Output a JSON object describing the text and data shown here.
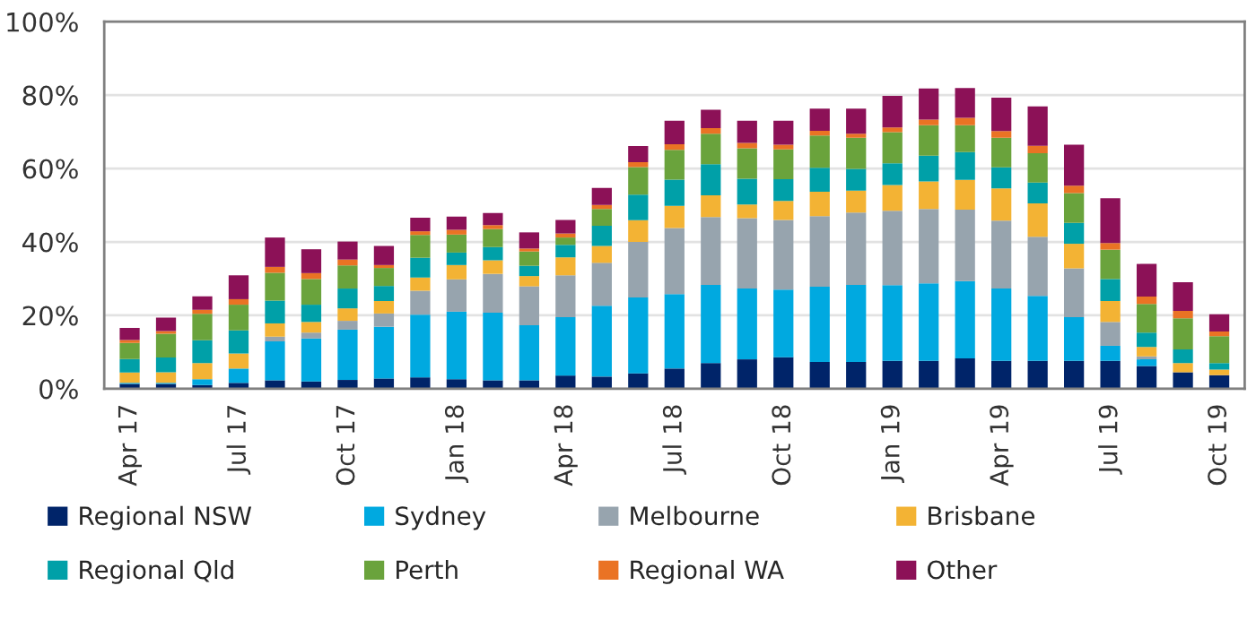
{
  "chart_data": {
    "type": "bar",
    "stacked": true,
    "categories": [
      "Apr 17",
      null,
      null,
      "Jul 17",
      null,
      null,
      "Oct 17",
      null,
      null,
      "Jan 18",
      null,
      null,
      "Apr 18",
      null,
      null,
      "Jul 18",
      null,
      null,
      "Oct 18",
      null,
      null,
      "Jan 19",
      null,
      null,
      "Apr 19",
      null,
      null,
      "Jul 19",
      null,
      null,
      "Oct 19"
    ],
    "series": [
      {
        "name": "Regional NSW",
        "color": "#002469",
        "values": [
          1.3,
          1.3,
          1.0,
          1.6,
          2.3,
          2.0,
          2.4,
          2.8,
          3.1,
          2.6,
          2.3,
          2.3,
          3.6,
          3.3,
          4.2,
          5.5,
          7.0,
          8.0,
          8.6,
          7.3,
          7.3,
          7.6,
          7.6,
          8.3,
          7.6,
          7.6,
          7.6,
          7.6,
          6.2,
          4.5,
          3.7
        ]
      },
      {
        "name": "Sydney",
        "color": "#00a9e0",
        "values": [
          0.3,
          0.3,
          1.6,
          3.9,
          10.6,
          11.7,
          13.7,
          14.1,
          17.1,
          18.4,
          18.4,
          15.0,
          15.9,
          19.3,
          20.7,
          20.3,
          21.3,
          19.3,
          18.4,
          20.5,
          21.0,
          20.6,
          21.1,
          21.0,
          19.7,
          17.7,
          11.9,
          4.1,
          1.8,
          0,
          0
        ]
      },
      {
        "name": "Melbourne",
        "color": "#97a4ae",
        "values": [
          0,
          0,
          0,
          0,
          1.3,
          1.6,
          2.4,
          3.6,
          6.5,
          8.8,
          10.6,
          10.6,
          11.4,
          11.7,
          15.1,
          18.0,
          18.5,
          19.2,
          19.0,
          19.2,
          19.7,
          20.3,
          20.3,
          19.5,
          18.5,
          16.1,
          13.3,
          6.5,
          0.8,
          0,
          0
        ]
      },
      {
        "name": "Brisbane",
        "color": "#f3b334",
        "values": [
          2.8,
          2.9,
          4.4,
          4.1,
          3.6,
          2.9,
          3.4,
          3.4,
          3.6,
          3.9,
          3.7,
          2.8,
          4.9,
          4.6,
          5.9,
          6.0,
          5.9,
          3.7,
          5.2,
          6.7,
          6.0,
          7.0,
          7.5,
          8.1,
          8.8,
          9.1,
          6.7,
          5.7,
          2.6,
          2.5,
          1.5
        ]
      },
      {
        "name": "Regional Qld",
        "color": "#00a0a8",
        "values": [
          3.7,
          4.0,
          6.2,
          6.3,
          6.2,
          4.7,
          5.4,
          4.1,
          5.4,
          3.4,
          3.6,
          2.8,
          3.4,
          5.5,
          7.0,
          7.2,
          8.5,
          7.0,
          5.9,
          6.5,
          5.9,
          5.9,
          7.0,
          7.6,
          5.7,
          5.7,
          5.7,
          6.0,
          3.9,
          3.7,
          1.8
        ]
      },
      {
        "name": "Perth",
        "color": "#6aa33c",
        "values": [
          4.4,
          6.5,
          7.2,
          7.0,
          7.6,
          7.0,
          6.3,
          4.9,
          6.2,
          4.9,
          4.9,
          3.9,
          2.0,
          4.6,
          7.5,
          8.1,
          8.3,
          8.3,
          8.1,
          8.8,
          8.5,
          8.5,
          8.3,
          7.3,
          8.1,
          8.0,
          8.1,
          8.0,
          7.8,
          8.5,
          7.3
        ]
      },
      {
        "name": "Regional WA",
        "color": "#ea7324",
        "values": [
          0.8,
          0.7,
          1.1,
          1.5,
          1.6,
          1.6,
          1.6,
          0.8,
          1.0,
          1.3,
          1.1,
          0.8,
          1.1,
          1.1,
          1.3,
          1.5,
          1.5,
          1.5,
          1.3,
          1.3,
          1.1,
          1.3,
          1.5,
          2.0,
          1.8,
          2.0,
          2.0,
          1.8,
          2.0,
          2.0,
          1.3
        ]
      },
      {
        "name": "Other",
        "color": "#8c1157",
        "values": [
          3.3,
          3.7,
          3.7,
          6.5,
          8.0,
          6.5,
          4.9,
          5.2,
          3.7,
          3.6,
          3.3,
          4.4,
          3.7,
          4.6,
          4.4,
          6.4,
          5.0,
          6.0,
          6.5,
          6.0,
          6.8,
          8.6,
          8.5,
          8.1,
          9.1,
          10.7,
          11.2,
          12.2,
          8.9,
          7.8,
          4.7
        ]
      }
    ],
    "ylim": [
      0,
      100
    ],
    "yticks": [
      {
        "value": 0,
        "label": "0%"
      },
      {
        "value": 20,
        "label": "20%"
      },
      {
        "value": 40,
        "label": "40%"
      },
      {
        "value": 60,
        "label": "60%"
      },
      {
        "value": 80,
        "label": "80%"
      },
      {
        "value": 100,
        "label": "100%"
      }
    ],
    "grid": "y",
    "legend": "bottom"
  }
}
